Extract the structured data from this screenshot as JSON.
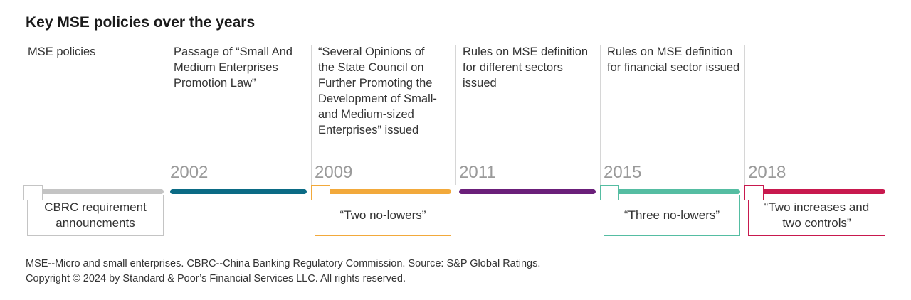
{
  "title": "Key MSE policies over the years",
  "row_label": "MSE policies",
  "milestones": [
    {
      "year": "",
      "policy": "",
      "measure": "CBRC requirement announcments",
      "color": "#c4c4c4"
    },
    {
      "year": "2002",
      "policy": "Passage of “Small And Medium Enterprises Promotion Law”",
      "measure": "",
      "color": "#0b6b85"
    },
    {
      "year": "2009",
      "policy": "“Several Opinions of the State Council on Further Promoting the Development of Small- and Medium-sized Enterprises” issued",
      "measure": "“Two no-lowers”",
      "color": "#f2a93b"
    },
    {
      "year": "2011",
      "policy": "Rules on MSE definition for different sectors issued",
      "measure": "",
      "color": "#6b1f7a"
    },
    {
      "year": "2015",
      "policy": "Rules on MSE definition for financial sector issued",
      "measure": "“Three no-lowers”",
      "color": "#55bda2"
    },
    {
      "year": "2018",
      "policy": "",
      "measure": "“Two increases and two controls”",
      "color": "#c8194e"
    }
  ],
  "footnote": {
    "line1": "MSE--Micro and small enterprises. CBRC--China Banking Regulatory Commission. Source: S&P Global Ratings.",
    "line2": "Copyright © 2024 by Standard & Poor’s Financial Services LLC. All rights reserved."
  }
}
